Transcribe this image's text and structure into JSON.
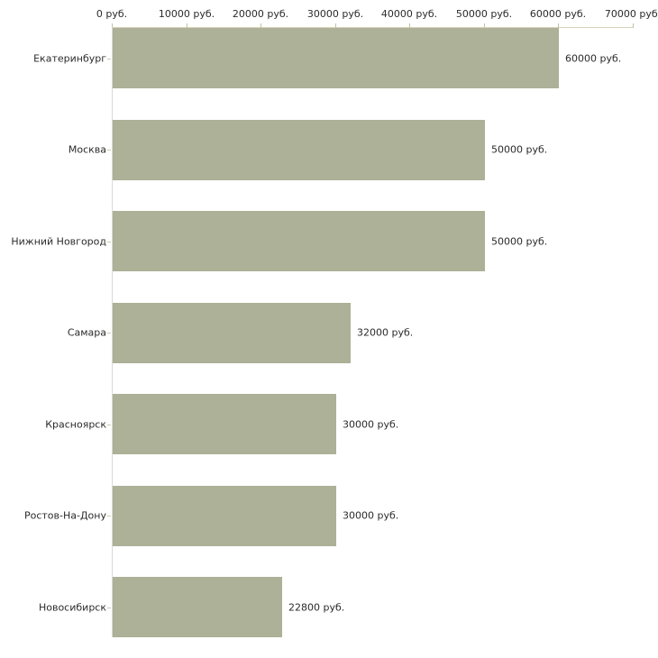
{
  "chart_data": {
    "type": "bar",
    "orientation": "horizontal",
    "categories": [
      "Екатеринбург",
      "Москва",
      "Нижний Новгород",
      "Самара",
      "Красноярск",
      "Ростов-На-Дону",
      "Новосибирск"
    ],
    "values": [
      60000,
      50000,
      50000,
      32000,
      30000,
      30000,
      22800
    ],
    "value_labels": [
      "60000 руб.",
      "50000 руб.",
      "50000 руб.",
      "32000 руб.",
      "30000 руб.",
      "30000 руб.",
      "22800 руб."
    ],
    "x_axis": {
      "position": "top",
      "min": 0,
      "max": 70000,
      "tick_step": 10000,
      "tick_labels": [
        "0 руб.",
        "10000 руб.",
        "20000 руб.",
        "30000 руб.",
        "40000 руб.",
        "50000 руб.",
        "60000 руб.",
        "70000 руб."
      ]
    },
    "unit": "руб.",
    "grid": false,
    "legend": false,
    "colors": {
      "bar": "#acb197",
      "x_axis_line": "#d5d3ba",
      "x_tick": "#c3c2a1",
      "y_axis_line": "#d9d9d9",
      "category_tick": "#cbcab0",
      "text": "#2b2b2b",
      "background": "#ffffff"
    }
  }
}
